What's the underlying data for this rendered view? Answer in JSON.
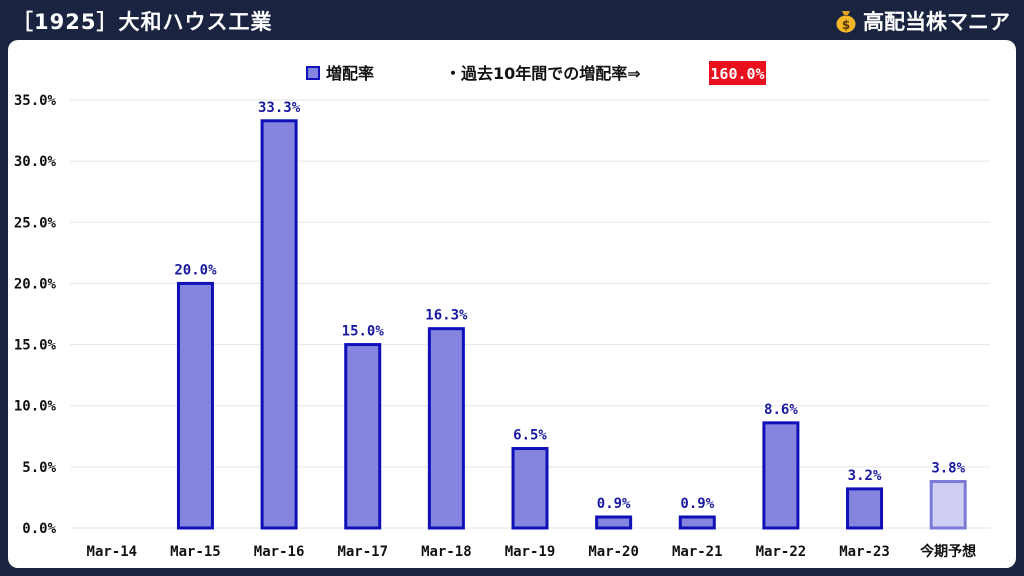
{
  "header": {
    "title": "［1925］大和ハウス工業",
    "brand": "高配当株マニア",
    "brand_icon": "money-bag-icon"
  },
  "colors": {
    "bar_fill": "#8585e0",
    "bar_stroke": "#1010b8",
    "forecast_fill": "#cfcff5",
    "forecast_stroke": "#7b7bd6",
    "label": "#1a1aa0",
    "badge": "#e8101c",
    "grid": "#e6e6e6"
  },
  "chart_data": {
    "type": "bar",
    "categories": [
      "Mar-14",
      "Mar-15",
      "Mar-16",
      "Mar-17",
      "Mar-18",
      "Mar-19",
      "Mar-20",
      "Mar-21",
      "Mar-22",
      "Mar-23",
      "今期予想"
    ],
    "series": [
      {
        "name": "増配率",
        "values": [
          null,
          20.0,
          33.3,
          15.0,
          16.3,
          6.5,
          0.9,
          0.9,
          8.6,
          3.2,
          3.8
        ],
        "labels": [
          "",
          "20.0%",
          "33.3%",
          "15.0%",
          "16.3%",
          "6.5%",
          "0.9%",
          "0.9%",
          "8.6%",
          "3.2%",
          "3.8%"
        ]
      }
    ],
    "forecast_index": 10,
    "ylim": [
      0,
      35
    ],
    "yticks": [
      0,
      5,
      10,
      15,
      20,
      25,
      30,
      35
    ],
    "ytick_labels": [
      "0.0%",
      "5.0%",
      "10.0%",
      "15.0%",
      "20.0%",
      "25.0%",
      "30.0%",
      "35.0%"
    ],
    "grid": true,
    "legend": "top-center",
    "annotation": {
      "text": "・過去10年間での増配率⇒",
      "value": "160.0%"
    }
  }
}
